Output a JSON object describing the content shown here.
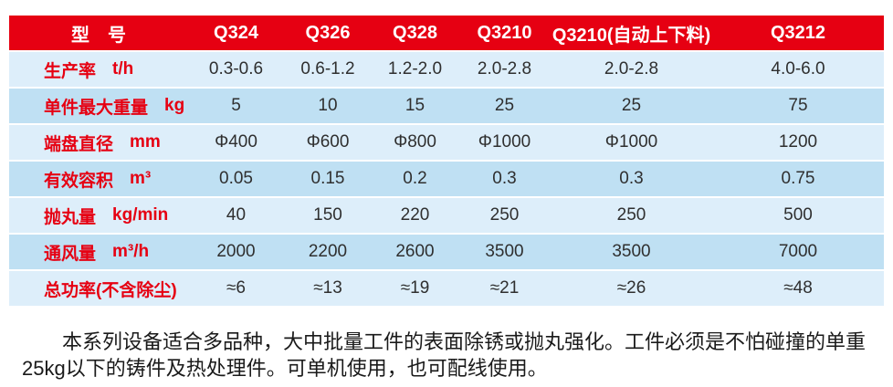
{
  "table": {
    "model_header": "型　号",
    "columns": [
      "Q324",
      "Q326",
      "Q328",
      "Q3210",
      "Q3210(自动上下料)",
      "Q3212"
    ],
    "rows": [
      {
        "label": "生产率",
        "unit": "t/h",
        "values": [
          "0.3-0.6",
          "0.6-1.2",
          "1.2-2.0",
          "2.0-2.8",
          "2.0-2.8",
          "4.0-6.0"
        ]
      },
      {
        "label": "单件最大重量",
        "unit": "kg",
        "values": [
          "5",
          "10",
          "15",
          "25",
          "25",
          "75"
        ]
      },
      {
        "label": "端盘直径",
        "unit": "mm",
        "values": [
          "Φ400",
          "Φ600",
          "Φ800",
          "Φ1000",
          "Φ1000",
          "1200"
        ]
      },
      {
        "label": "有效容积",
        "unit": "m³",
        "values": [
          "0.05",
          "0.15",
          "0.2",
          "0.3",
          "0.3",
          "0.75"
        ]
      },
      {
        "label": "抛丸量",
        "unit": "kg/min",
        "values": [
          "40",
          "150",
          "220",
          "250",
          "250",
          "500"
        ]
      },
      {
        "label": "通风量",
        "unit": "m³/h",
        "values": [
          "2000",
          "2200",
          "2600",
          "3500",
          "3500",
          "7000"
        ]
      },
      {
        "label": "总功率(不含除尘)",
        "unit": "",
        "values": [
          "≈6",
          "≈13",
          "≈19",
          "≈21",
          "≈26",
          "≈48"
        ]
      }
    ]
  },
  "description": {
    "lines": [
      "本系列设备适合多品种，大中批量工件的表面除锈或抛丸强化。工件必须是不怕碰撞的单重",
      "25kg以下的铸件及热处理件。可单机使用，也可配线使用。"
    ]
  },
  "colors": {
    "header_bg": "#e60012",
    "header_text": "#ffffff",
    "label_text": "#e60012",
    "value_text": "#2f2f2f",
    "row_light": "#ddeefa",
    "row_medium": "#bfe0f3",
    "page_bg": "#ffffff",
    "body_text": "#1a1a1a"
  }
}
